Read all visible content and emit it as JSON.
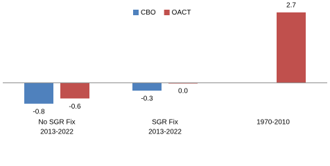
{
  "chart_data": {
    "type": "bar",
    "categories": [
      [
        "No SGR Fix",
        "2013-2022"
      ],
      [
        "SGR Fix",
        "2013-2022"
      ],
      [
        "1970-2010"
      ]
    ],
    "series": [
      {
        "name": "CBO",
        "color": "#4f81bd",
        "values": [
          -0.8,
          -0.3,
          null
        ],
        "value_labels": [
          "-0.8",
          "-0.3",
          null
        ]
      },
      {
        "name": "OACT",
        "color": "#c0504d",
        "values": [
          -0.6,
          0,
          2.7
        ],
        "value_labels": [
          "-0.6",
          "0.0",
          "2.7"
        ]
      }
    ],
    "ylim": [
      -1.2,
      3.0
    ],
    "legend": "top"
  }
}
